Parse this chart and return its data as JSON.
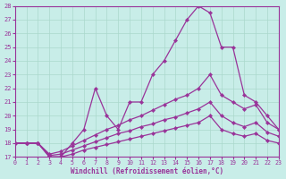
{
  "xlabel": "Windchill (Refroidissement éolien,°C)",
  "bg_color": "#c8ede8",
  "grid_color": "#aad8cc",
  "line_color": "#993399",
  "xlim": [
    0,
    23
  ],
  "ylim": [
    17,
    28
  ],
  "yticks": [
    17,
    18,
    19,
    20,
    21,
    22,
    23,
    24,
    25,
    26,
    27,
    28
  ],
  "xticks": [
    0,
    1,
    2,
    3,
    4,
    5,
    6,
    7,
    8,
    9,
    10,
    11,
    12,
    13,
    14,
    15,
    16,
    17,
    18,
    19,
    20,
    21,
    22,
    23
  ],
  "curve1_x": [
    0,
    1,
    2,
    3,
    4,
    5,
    6,
    7,
    8,
    9,
    10,
    11,
    12,
    13,
    14,
    15,
    16,
    17,
    18,
    19,
    20,
    21,
    22,
    23
  ],
  "curve1_y": [
    18,
    18,
    18,
    17,
    17,
    18,
    19,
    22,
    20,
    19,
    21,
    21,
    23,
    24,
    25.5,
    27,
    28,
    27.5,
    25,
    25,
    21.5,
    21,
    20,
    19
  ],
  "curve2_x": [
    0,
    1,
    2,
    3,
    4,
    5,
    6,
    7,
    8,
    9,
    10,
    11,
    12,
    13,
    14,
    15,
    16,
    17,
    18,
    19,
    20,
    21,
    22,
    23
  ],
  "curve2_y": [
    18,
    18,
    18,
    17.2,
    17.4,
    17.8,
    18.2,
    18.6,
    19,
    19.3,
    19.7,
    20,
    20.4,
    20.8,
    21.2,
    21.5,
    22,
    23,
    21.5,
    21,
    20.5,
    20.8,
    19.5,
    19
  ],
  "curve3_x": [
    0,
    1,
    2,
    3,
    4,
    5,
    6,
    7,
    8,
    9,
    10,
    11,
    12,
    13,
    14,
    15,
    16,
    17,
    18,
    19,
    20,
    21,
    22,
    23
  ],
  "curve3_y": [
    18,
    18,
    18,
    17.1,
    17.2,
    17.5,
    17.8,
    18.1,
    18.4,
    18.7,
    18.9,
    19.2,
    19.4,
    19.7,
    19.9,
    20.2,
    20.5,
    21,
    20,
    19.5,
    19.2,
    19.5,
    18.8,
    18.5
  ],
  "curve4_x": [
    0,
    1,
    2,
    3,
    4,
    5,
    6,
    7,
    8,
    9,
    10,
    11,
    12,
    13,
    14,
    15,
    16,
    17,
    18,
    19,
    20,
    21,
    22,
    23
  ],
  "curve4_y": [
    18,
    18,
    18,
    17.0,
    17.0,
    17.2,
    17.5,
    17.7,
    17.9,
    18.1,
    18.3,
    18.5,
    18.7,
    18.9,
    19.1,
    19.3,
    19.5,
    20,
    19,
    18.7,
    18.5,
    18.7,
    18.2,
    18.0
  ]
}
